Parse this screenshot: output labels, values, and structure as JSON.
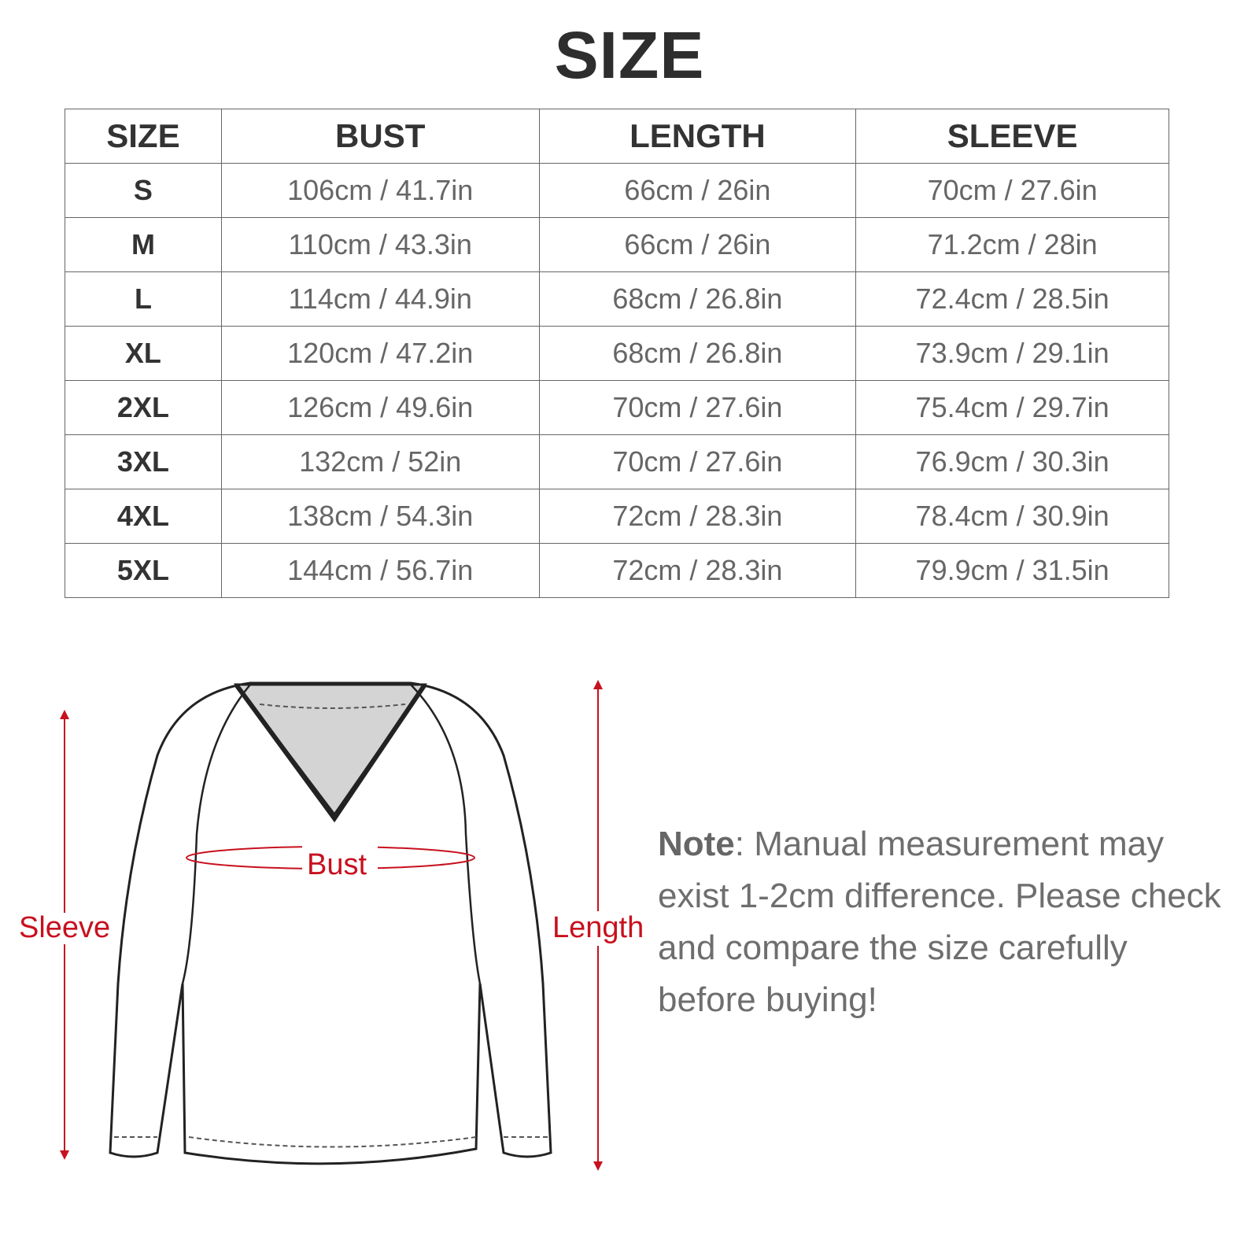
{
  "title": "SIZE",
  "table": {
    "headers": [
      "SIZE",
      "BUST",
      "LENGTH",
      "SLEEVE"
    ],
    "rows": [
      [
        "S",
        "106cm / 41.7in",
        "66cm / 26in",
        "70cm / 27.6in"
      ],
      [
        "M",
        "110cm / 43.3in",
        "66cm / 26in",
        "71.2cm / 28in"
      ],
      [
        "L",
        "114cm / 44.9in",
        "68cm / 26.8in",
        "72.4cm / 28.5in"
      ],
      [
        "XL",
        "120cm / 47.2in",
        "68cm / 26.8in",
        "73.9cm / 29.1in"
      ],
      [
        "2XL",
        "126cm / 49.6in",
        "70cm / 27.6in",
        "75.4cm / 29.7in"
      ],
      [
        "3XL",
        "132cm / 52in",
        "70cm / 27.6in",
        "76.9cm / 30.3in"
      ],
      [
        "4XL",
        "138cm / 54.3in",
        "72cm / 28.3in",
        "78.4cm / 30.9in"
      ],
      [
        "5XL",
        "144cm / 56.7in",
        "72cm / 28.3in",
        "79.9cm / 31.5in"
      ]
    ]
  },
  "diagram": {
    "labels": {
      "bust": "Bust",
      "sleeve": "Sleeve",
      "length": "Length"
    },
    "accent_color": "#c8101e"
  },
  "note": {
    "label": "Note",
    "text": ": Manual measurement may exist 1-2cm difference. Please check and compare the size carefully before buying!"
  }
}
